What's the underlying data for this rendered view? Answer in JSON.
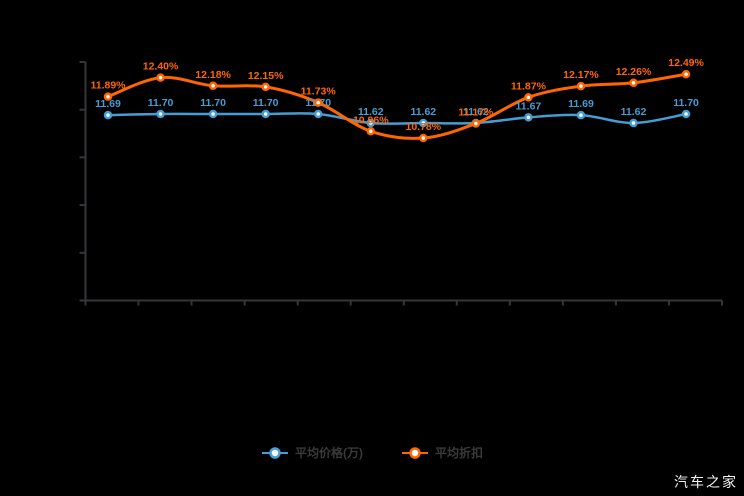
{
  "watermark": "汽车之家",
  "colors": {
    "background": "#000000",
    "axis": "#35363a",
    "price_blue": "#459dd5",
    "discount_orange": "#ff6600",
    "legend_text": "#3a3a3a",
    "watermark_text": "#f2f2f2"
  },
  "legend": [
    {
      "label": "平均价格(万)",
      "color": "#459dd5"
    },
    {
      "label": "平均折扣",
      "color": "#ff6600"
    }
  ],
  "chart_data": {
    "type": "line",
    "title": "",
    "xlabel": "",
    "ylabel": "",
    "grid": false,
    "legend_position": "bottom",
    "x_tick_count": 13,
    "y_tick_count": 6,
    "axis_tick_labels_visible": false,
    "series": [
      {
        "name": "平均价格(万)",
        "color": "#459dd5",
        "values": [
          11.69,
          11.7,
          11.7,
          11.7,
          11.7,
          11.62,
          11.62,
          11.62,
          11.67,
          11.69,
          11.62,
          11.7
        ],
        "labels": [
          "11.69",
          "11.70",
          "11.70",
          "11.70",
          "11.70",
          "11.62",
          "11.62",
          "11.62",
          "11.67",
          "11.69",
          "11.62",
          "11.70"
        ]
      },
      {
        "name": "平均折扣",
        "color": "#ff6600",
        "values": [
          11.89,
          12.4,
          12.18,
          12.15,
          11.73,
          10.96,
          10.78,
          11.17,
          11.87,
          12.17,
          12.26,
          12.49
        ],
        "labels": [
          "11.89%",
          "12.40%",
          "12.18%",
          "12.15%",
          "11.73%",
          "10.96%",
          "10.78%",
          "11.17%",
          "11.87%",
          "12.17%",
          "12.26%",
          "12.49%"
        ]
      }
    ]
  }
}
